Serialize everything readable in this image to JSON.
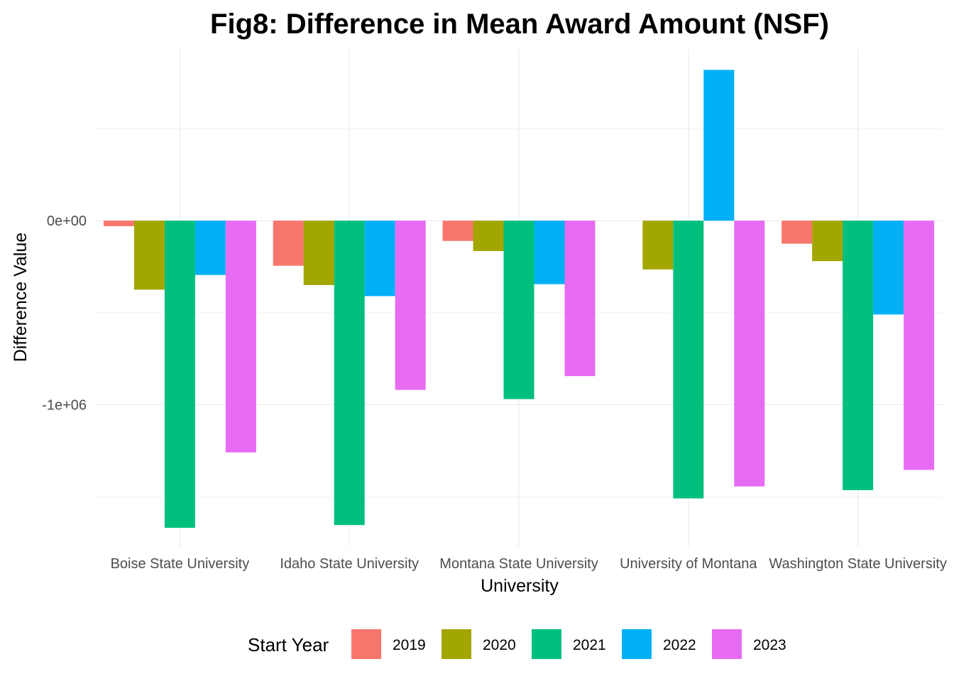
{
  "chart_data": {
    "type": "bar",
    "title": "Fig8: Difference in Mean Award Amount (NSF)",
    "xlabel": "University",
    "ylabel": "Difference Value",
    "categories": [
      "Boise State University",
      "Idaho State University",
      "Montana State University",
      "University of Montana",
      "Washington State University"
    ],
    "series": [
      {
        "name": "2019",
        "color": "#F8766D",
        "values": [
          -30000,
          -245000,
          -110000,
          null,
          -125000
        ]
      },
      {
        "name": "2020",
        "color": "#A3A500",
        "values": [
          -375000,
          -350000,
          -165000,
          -265000,
          -220000
        ]
      },
      {
        "name": "2021",
        "color": "#00BF7D",
        "values": [
          -1670000,
          -1655000,
          -970000,
          -1510000,
          -1465000
        ]
      },
      {
        "name": "2022",
        "color": "#00B0F6",
        "values": [
          -295000,
          -410000,
          -345000,
          820000,
          -510000
        ]
      },
      {
        "name": "2023",
        "color": "#E76BF3",
        "values": [
          -1260000,
          -920000,
          -845000,
          -1445000,
          -1355000
        ]
      }
    ],
    "ylim": [
      -1770000,
      930000
    ],
    "yticks": [
      0,
      -1000000
    ],
    "ytick_labels": [
      "0e+00",
      "-1e+06"
    ],
    "legend_title": "Start Year",
    "legend_position": "bottom",
    "grid": true
  }
}
